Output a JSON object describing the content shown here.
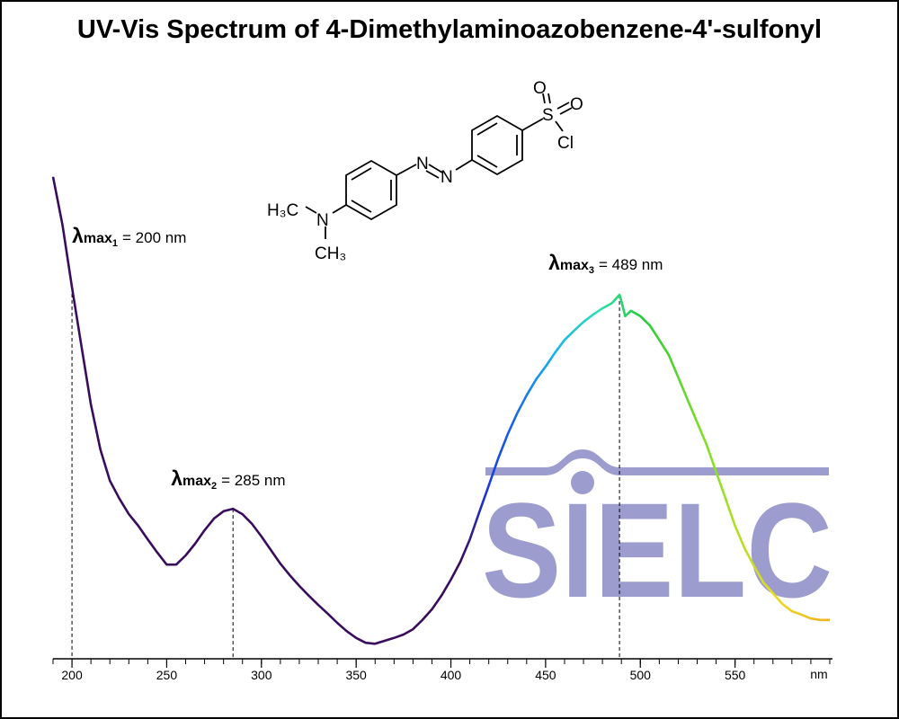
{
  "chart_data": {
    "type": "line",
    "title": "UV-Vis Spectrum of 4-Dimethylaminoazobenzene-4'-sulfonyl",
    "x": [
      190,
      195,
      200,
      205,
      210,
      215,
      220,
      225,
      230,
      235,
      240,
      245,
      250,
      255,
      260,
      265,
      270,
      275,
      280,
      285,
      290,
      295,
      300,
      305,
      310,
      315,
      320,
      325,
      330,
      335,
      340,
      345,
      350,
      355,
      360,
      365,
      370,
      375,
      380,
      385,
      390,
      395,
      400,
      405,
      410,
      415,
      420,
      425,
      430,
      435,
      440,
      445,
      450,
      455,
      460,
      465,
      470,
      475,
      480,
      485,
      489,
      490,
      492,
      495,
      500,
      505,
      510,
      515,
      520,
      525,
      530,
      535,
      540,
      545,
      550,
      555,
      560,
      565,
      570,
      575,
      580,
      585,
      590,
      595,
      600
    ],
    "values": [
      0.993,
      0.894,
      0.765,
      0.644,
      0.524,
      0.431,
      0.367,
      0.33,
      0.298,
      0.274,
      0.246,
      0.219,
      0.194,
      0.194,
      0.213,
      0.237,
      0.265,
      0.289,
      0.304,
      0.309,
      0.298,
      0.278,
      0.252,
      0.224,
      0.196,
      0.172,
      0.15,
      0.13,
      0.111,
      0.093,
      0.074,
      0.057,
      0.043,
      0.033,
      0.031,
      0.037,
      0.043,
      0.05,
      0.061,
      0.08,
      0.102,
      0.13,
      0.163,
      0.2,
      0.246,
      0.302,
      0.357,
      0.413,
      0.463,
      0.506,
      0.543,
      0.576,
      0.602,
      0.631,
      0.657,
      0.676,
      0.694,
      0.709,
      0.722,
      0.733,
      0.75,
      0.737,
      0.706,
      0.717,
      0.706,
      0.687,
      0.657,
      0.626,
      0.58,
      0.533,
      0.487,
      0.441,
      0.385,
      0.33,
      0.274,
      0.228,
      0.191,
      0.157,
      0.135,
      0.113,
      0.098,
      0.091,
      0.083,
      0.08,
      0.08
    ],
    "xlim": [
      190,
      600
    ],
    "ylim": [
      0,
      1
    ],
    "xticks": [
      200,
      250,
      300,
      350,
      400,
      450,
      500,
      550
    ],
    "xminor_ticks": [
      190,
      200,
      210,
      220,
      230,
      240,
      250,
      260,
      270,
      280,
      290,
      300,
      310,
      320,
      330,
      340,
      350,
      360,
      370,
      380,
      390,
      400,
      410,
      420,
      430,
      440,
      450,
      460,
      470,
      480,
      490,
      500,
      510,
      520,
      530,
      540,
      550,
      560,
      570,
      580,
      590,
      600
    ],
    "x_unit": "nm",
    "color_stops": [
      {
        "x": 405,
        "color": "#3a0c5e"
      },
      {
        "x": 420,
        "color": "#1a3ae0"
      },
      {
        "x": 455,
        "color": "#14b4ea"
      },
      {
        "x": 478,
        "color": "#2ee0b0"
      },
      {
        "x": 500,
        "color": "#22cc3a"
      },
      {
        "x": 540,
        "color": "#8ee024"
      },
      {
        "x": 570,
        "color": "#e8dc20"
      },
      {
        "x": 600,
        "color": "#f2b020"
      }
    ],
    "annotations": [
      {
        "x": 200,
        "y": 0.765,
        "symbol": "λ",
        "sub": "max",
        "index": "1",
        "text": "= 200 nm"
      },
      {
        "x": 285,
        "y": 0.309,
        "symbol": "λ",
        "sub": "max",
        "index": "2",
        "text": "= 285 nm"
      },
      {
        "x": 489,
        "y": 0.75,
        "symbol": "λ",
        "sub": "max",
        "index": "3",
        "text": "= 489 nm"
      }
    ],
    "watermark": "SIELC",
    "structure": {
      "labels": [
        "H₃C",
        "N",
        "CH₃",
        "N",
        "N",
        "S",
        "O",
        "O",
        "Cl"
      ]
    }
  }
}
